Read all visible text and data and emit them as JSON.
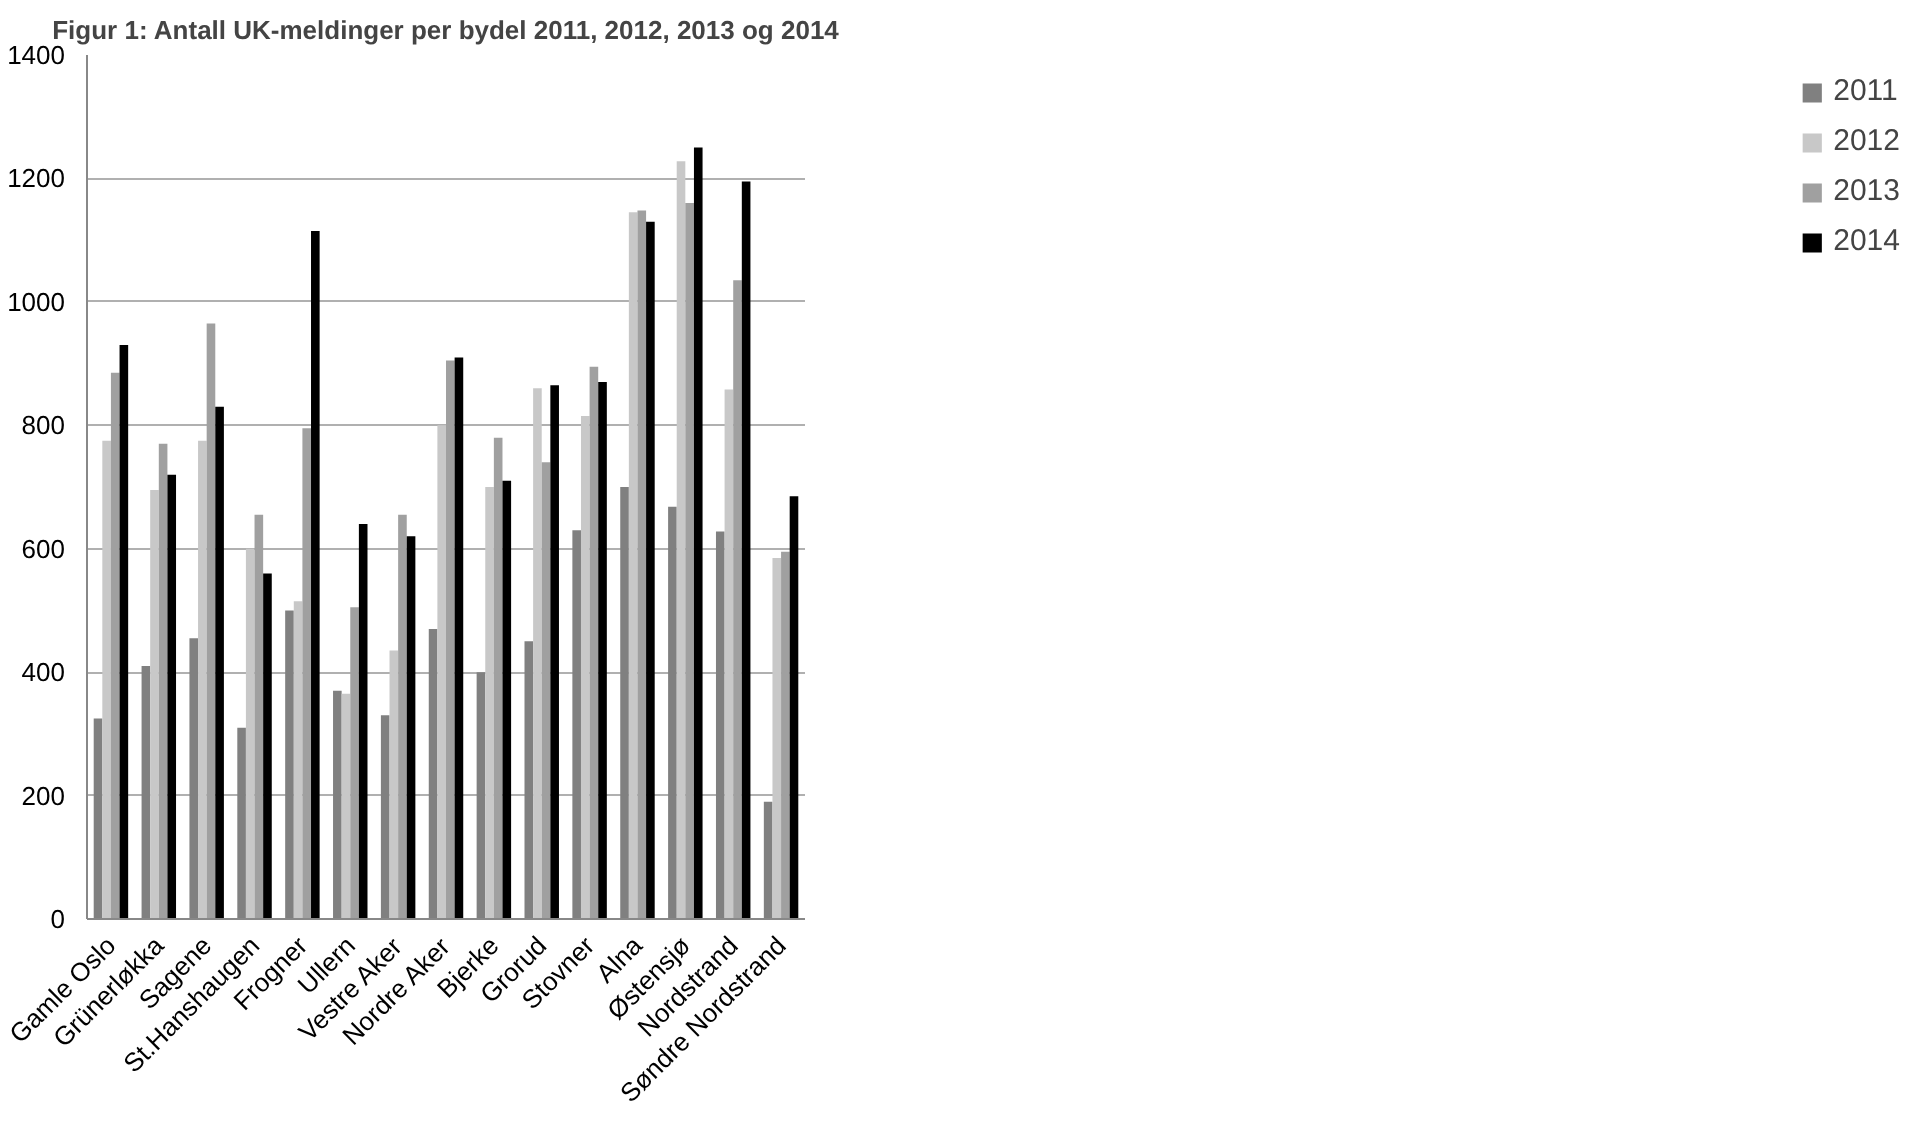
{
  "chart_data": {
    "type": "bar",
    "title": "Figur 1: Antall UK-meldinger per bydel 2011, 2012, 2013 og 2014",
    "categories": [
      "Gamle Oslo",
      "Grünerløkka",
      "Sagene",
      "St.Hanshaugen",
      "Frogner",
      "Ullern",
      "Vestre Aker",
      "Nordre Aker",
      "Bjerke",
      "Grorud",
      "Stovner",
      "Alna",
      "Østensjø",
      "Nordstrand",
      "Søndre Nordstrand"
    ],
    "series": [
      {
        "name": "2011",
        "color": "#808080",
        "values": [
          325,
          410,
          455,
          310,
          500,
          370,
          330,
          470,
          400,
          450,
          630,
          700,
          668,
          628,
          190
        ]
      },
      {
        "name": "2012",
        "color": "#c8c8c8",
        "values": [
          775,
          695,
          775,
          600,
          515,
          365,
          435,
          800,
          700,
          860,
          815,
          1145,
          1228,
          858,
          585
        ]
      },
      {
        "name": "2013",
        "color": "#a0a0a0",
        "values": [
          885,
          770,
          965,
          655,
          795,
          505,
          655,
          905,
          780,
          740,
          895,
          1148,
          1160,
          1035,
          595
        ]
      },
      {
        "name": "2014",
        "color": "#000000",
        "values": [
          930,
          720,
          830,
          560,
          1115,
          640,
          620,
          910,
          710,
          865,
          870,
          1130,
          1250,
          1195,
          685
        ]
      }
    ],
    "ylim": [
      0,
      1400
    ],
    "yticks": [
      0,
      200,
      400,
      600,
      800,
      1000,
      1200,
      1400
    ],
    "grid": "y",
    "legend": "right"
  }
}
